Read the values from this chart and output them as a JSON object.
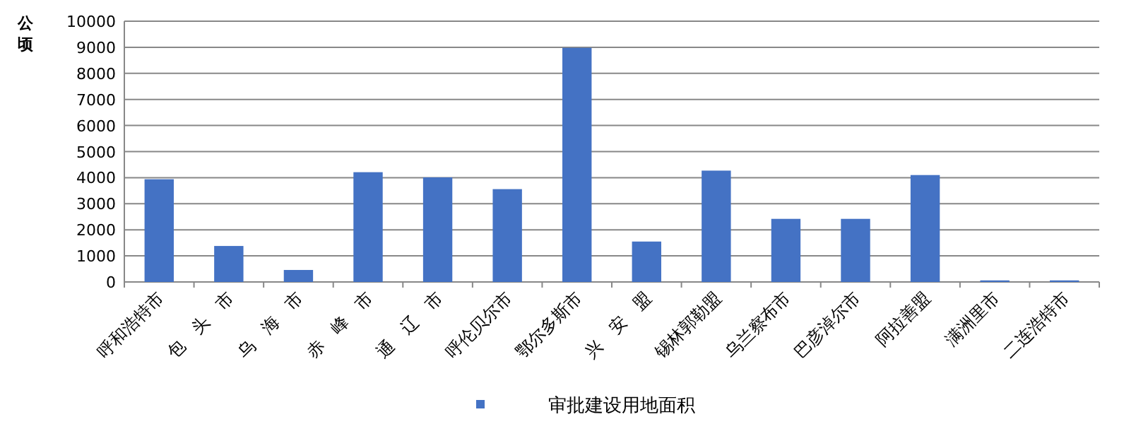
{
  "chart_data": {
    "type": "bar",
    "ylabel": "公顷",
    "categories": [
      "呼和浩特市",
      "包　头　市",
      "乌　海　市",
      "赤　峰　市",
      "通　辽　市",
      "呼伦贝尔市",
      "鄂尔多斯市",
      "兴　安　盟",
      "锡林郭勒盟",
      "乌兰察布市",
      "巴彦淖尔市",
      "阿拉善盟",
      "满洲里市",
      "二连浩特市"
    ],
    "series": [
      {
        "name": "审批建设用地面积",
        "color": "#4472c4",
        "values": [
          3940,
          1380,
          460,
          4210,
          4010,
          3560,
          8980,
          1550,
          4270,
          2420,
          2420,
          4100,
          60,
          60
        ]
      }
    ],
    "ylim": [
      0,
      10000
    ],
    "yticks": [
      0,
      1000,
      2000,
      3000,
      4000,
      5000,
      6000,
      7000,
      8000,
      9000,
      10000
    ],
    "grid": "y",
    "legend": "bottom"
  }
}
